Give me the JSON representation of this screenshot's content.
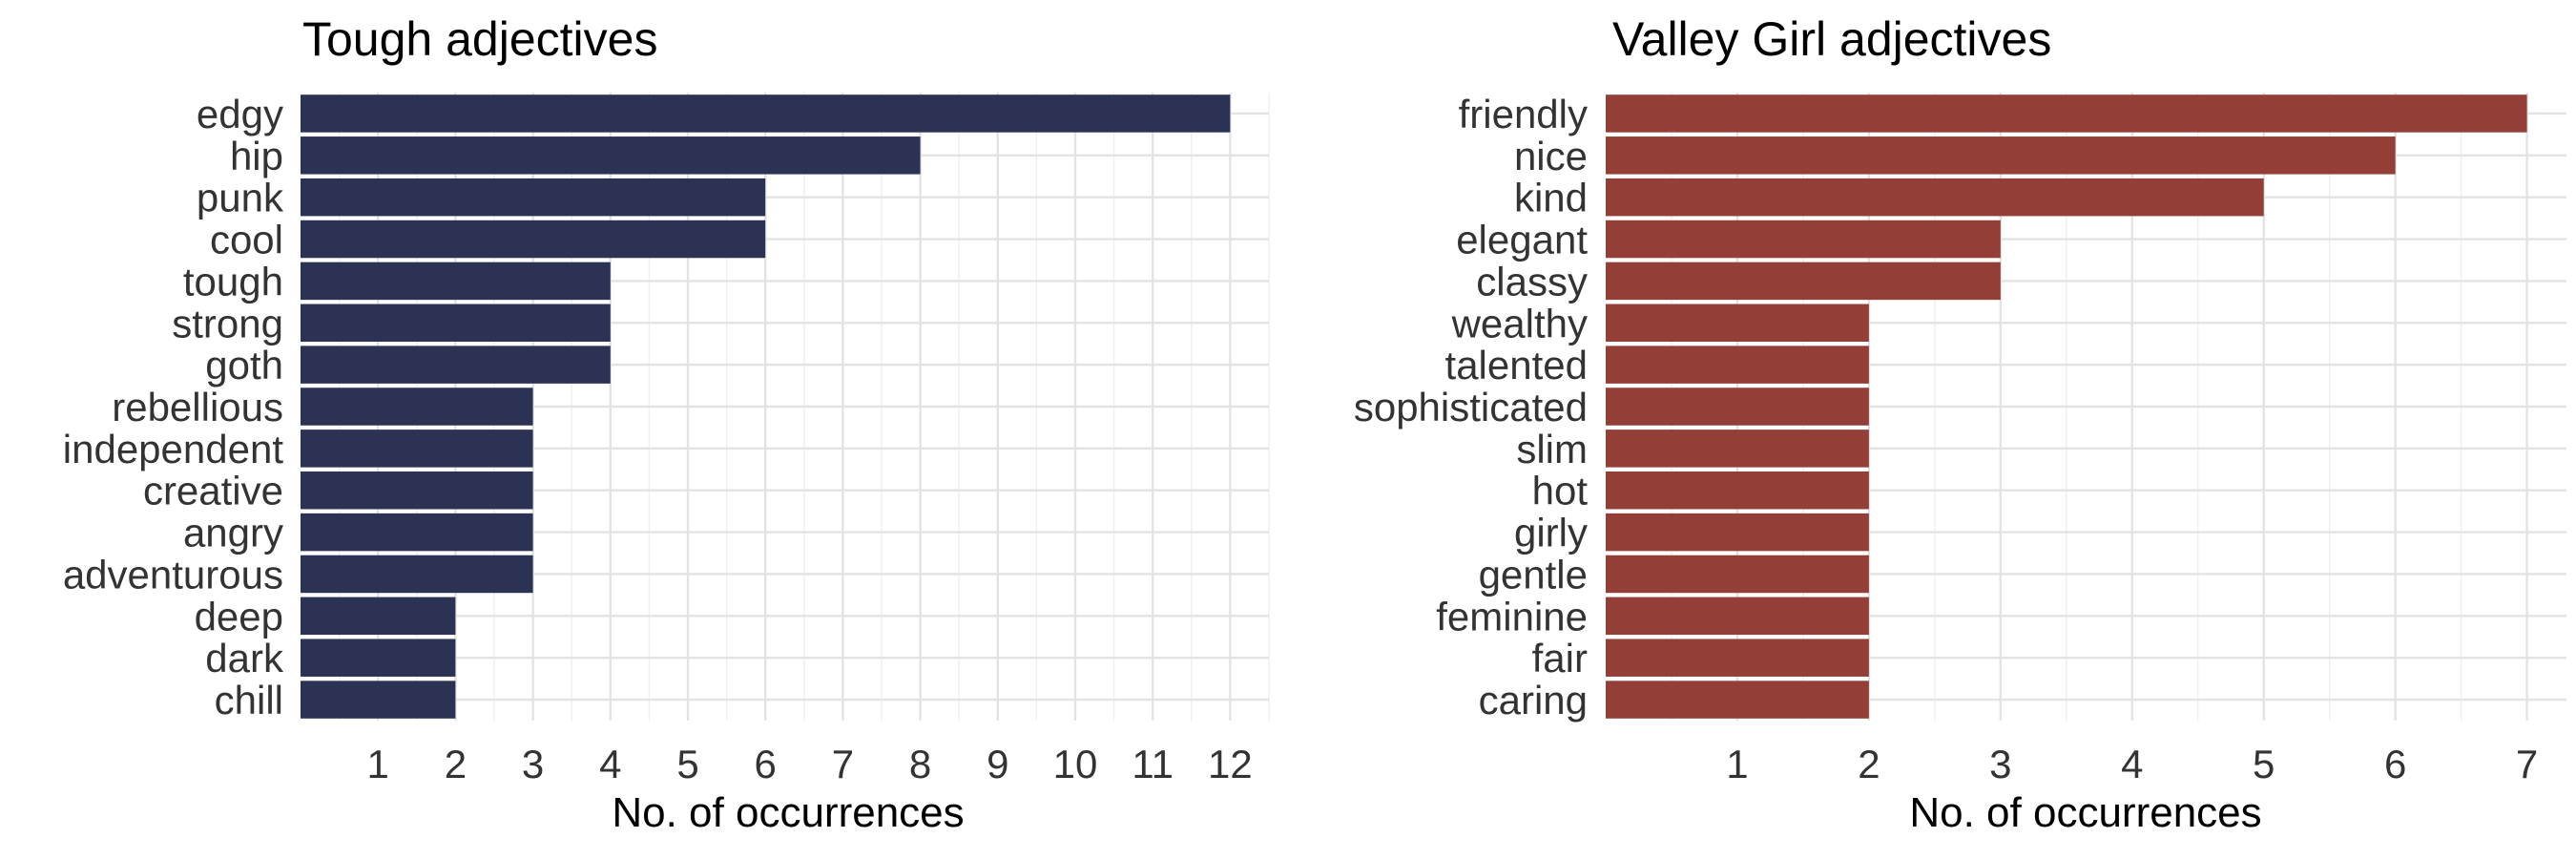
{
  "chart_data": [
    {
      "type": "bar",
      "orientation": "horizontal",
      "title": "Tough adjectives",
      "xlabel": "No. of occurrences",
      "ylabel": "",
      "xlim": [
        0,
        12.5
      ],
      "xticks": [
        1,
        2,
        3,
        4,
        5,
        6,
        7,
        8,
        9,
        10,
        11,
        12
      ],
      "grid": true,
      "legend": "none",
      "color": "#2b3254",
      "categories": [
        "edgy",
        "hip",
        "punk",
        "cool",
        "tough",
        "strong",
        "goth",
        "rebellious",
        "independent",
        "creative",
        "angry",
        "adventurous",
        "deep",
        "dark",
        "chill"
      ],
      "values": [
        12,
        8,
        6,
        6,
        4,
        4,
        4,
        3,
        3,
        3,
        3,
        3,
        2,
        2,
        2
      ]
    },
    {
      "type": "bar",
      "orientation": "horizontal",
      "title": "Valley Girl adjectives",
      "xlabel": "No. of occurrences",
      "ylabel": "",
      "xlim": [
        0,
        7.3
      ],
      "xticks": [
        1,
        2,
        3,
        4,
        5,
        6,
        7
      ],
      "grid": true,
      "legend": "none",
      "color": "#933e36",
      "categories": [
        "friendly",
        "nice",
        "kind",
        "elegant",
        "classy",
        "wealthy",
        "talented",
        "sophisticated",
        "slim",
        "hot",
        "girly",
        "gentle",
        "feminine",
        "fair",
        "caring"
      ],
      "values": [
        7,
        6,
        5,
        3,
        3,
        2,
        2,
        2,
        2,
        2,
        2,
        2,
        2,
        2,
        2
      ]
    }
  ]
}
